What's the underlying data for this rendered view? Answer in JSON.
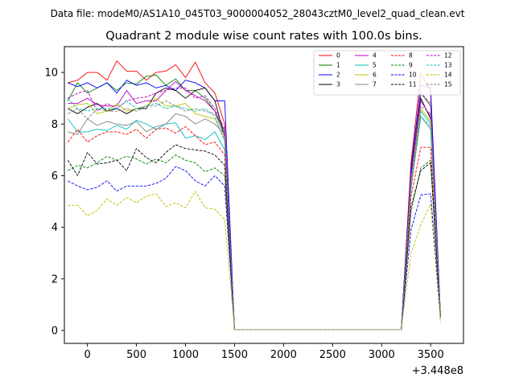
{
  "suptitle": "Data file: modeM0/AS1A10_045T03_9000004052_28043cztM0_level2_quad_clean.evt",
  "chart_data": {
    "type": "line",
    "title": "Quadrant 2 module wise count rates with 100.0s bins.",
    "xlabel": "",
    "ylabel": "",
    "x_offset_label": "+3.448e8",
    "xlim": [
      -235,
      3835
    ],
    "ylim": [
      -0.5,
      11.0
    ],
    "xticks": [
      0,
      500,
      1000,
      1500,
      2000,
      2500,
      3000,
      3500
    ],
    "yticks": [
      0,
      2,
      4,
      6,
      8,
      10
    ],
    "grid": false,
    "legend_position": "top-right",
    "x": [
      -200,
      -100,
      0,
      100,
      200,
      300,
      400,
      500,
      600,
      700,
      800,
      900,
      1000,
      1100,
      1200,
      1300,
      1400,
      1500,
      1600,
      1700,
      1800,
      1900,
      2000,
      2100,
      2200,
      2300,
      2400,
      2500,
      2600,
      2700,
      2800,
      2900,
      3000,
      3100,
      3200,
      3300,
      3400,
      3500,
      3600
    ],
    "series": [
      {
        "name": "0",
        "color": "#ff0000",
        "dash": "solid",
        "values": [
          9.6,
          9.7,
          10.0,
          10.0,
          9.7,
          10.45,
          10.05,
          10.05,
          9.7,
          10.0,
          10.05,
          10.3,
          9.8,
          10.4,
          9.6,
          9.2,
          8.0,
          0.03,
          0.03,
          0.03,
          0.03,
          0.03,
          0.03,
          0.03,
          0.03,
          0.03,
          0.03,
          0.03,
          0.03,
          0.03,
          0.03,
          0.03,
          0.03,
          0.03,
          0.03,
          6.5,
          10.0,
          9.2,
          0.6
        ]
      },
      {
        "name": "1",
        "color": "#008000",
        "dash": "solid",
        "values": [
          8.9,
          9.6,
          9.2,
          9.4,
          9.6,
          9.3,
          9.6,
          9.55,
          9.85,
          9.9,
          9.5,
          9.75,
          9.3,
          9.3,
          9.0,
          8.5,
          7.7,
          0.03,
          0.03,
          0.03,
          0.03,
          0.03,
          0.03,
          0.03,
          0.03,
          0.03,
          0.03,
          0.03,
          0.03,
          0.03,
          0.03,
          0.03,
          0.03,
          0.03,
          0.03,
          6.2,
          9.2,
          8.7,
          0.55
        ]
      },
      {
        "name": "2",
        "color": "#0000ff",
        "dash": "solid",
        "values": [
          9.6,
          9.45,
          9.6,
          9.4,
          9.6,
          9.2,
          9.7,
          9.5,
          9.6,
          9.4,
          9.5,
          9.3,
          9.7,
          9.6,
          9.4,
          8.9,
          8.9,
          0.03,
          0.03,
          0.03,
          0.03,
          0.03,
          0.03,
          0.03,
          0.03,
          0.03,
          0.03,
          0.03,
          0.03,
          0.03,
          0.03,
          0.03,
          0.03,
          0.03,
          0.03,
          6.3,
          9.5,
          9.4,
          0.6
        ]
      },
      {
        "name": "3",
        "color": "#000000",
        "dash": "solid",
        "values": [
          8.6,
          8.4,
          8.65,
          8.8,
          8.5,
          8.6,
          8.4,
          8.6,
          8.6,
          9.2,
          9.4,
          9.3,
          9.0,
          9.3,
          9.4,
          8.9,
          7.5,
          0.03,
          0.03,
          0.03,
          0.03,
          0.03,
          0.03,
          0.03,
          0.03,
          0.03,
          0.03,
          0.03,
          0.03,
          0.03,
          0.03,
          0.03,
          0.03,
          0.03,
          0.03,
          6.0,
          9.0,
          8.2,
          0.5
        ]
      },
      {
        "name": "4",
        "color": "#bf00bf",
        "dash": "solid",
        "values": [
          8.8,
          8.8,
          9.0,
          8.75,
          8.7,
          8.7,
          9.3,
          8.8,
          8.9,
          8.9,
          9.3,
          9.65,
          9.3,
          9.1,
          8.9,
          8.5,
          7.5,
          0.03,
          0.03,
          0.03,
          0.03,
          0.03,
          0.03,
          0.03,
          0.03,
          0.03,
          0.03,
          0.03,
          0.03,
          0.03,
          0.03,
          0.03,
          0.03,
          0.03,
          0.03,
          6.0,
          8.9,
          8.3,
          0.5
        ]
      },
      {
        "name": "5",
        "color": "#00bfbf",
        "dash": "solid",
        "values": [
          8.2,
          7.7,
          7.7,
          7.8,
          7.75,
          7.95,
          7.8,
          8.15,
          8.0,
          7.8,
          8.0,
          8.05,
          7.45,
          7.55,
          7.4,
          7.7,
          7.0,
          0.03,
          0.03,
          0.03,
          0.03,
          0.03,
          0.03,
          0.03,
          0.03,
          0.03,
          0.03,
          0.03,
          0.03,
          0.03,
          0.03,
          0.03,
          0.03,
          0.03,
          0.03,
          5.5,
          8.5,
          8.0,
          0.5
        ]
      },
      {
        "name": "6",
        "color": "#bfbf00",
        "dash": "solid",
        "values": [
          8.6,
          8.75,
          8.8,
          8.4,
          8.5,
          8.8,
          8.5,
          8.6,
          8.7,
          9.0,
          8.7,
          8.7,
          8.8,
          8.4,
          8.3,
          8.2,
          7.4,
          0.03,
          0.03,
          0.03,
          0.03,
          0.03,
          0.03,
          0.03,
          0.03,
          0.03,
          0.03,
          0.03,
          0.03,
          0.03,
          0.03,
          0.03,
          0.03,
          0.03,
          0.03,
          5.7,
          8.6,
          8.1,
          0.5
        ]
      },
      {
        "name": "7",
        "color": "#808080",
        "dash": "solid",
        "values": [
          7.7,
          7.6,
          8.2,
          7.95,
          8.1,
          8.0,
          7.95,
          8.1,
          7.7,
          7.9,
          8.0,
          8.4,
          8.3,
          8.0,
          8.2,
          8.0,
          7.6,
          0.03,
          0.03,
          0.03,
          0.03,
          0.03,
          0.03,
          0.03,
          0.03,
          0.03,
          0.03,
          0.03,
          0.03,
          0.03,
          0.03,
          0.03,
          0.03,
          0.03,
          0.03,
          5.5,
          8.3,
          7.8,
          0.5
        ]
      },
      {
        "name": "8",
        "color": "#ff0000",
        "dash": "dashed",
        "values": [
          7.3,
          7.8,
          7.3,
          7.55,
          7.7,
          7.7,
          7.6,
          7.8,
          7.45,
          7.8,
          7.85,
          7.65,
          7.9,
          7.55,
          7.2,
          7.3,
          6.8,
          0.03,
          0.03,
          0.03,
          0.03,
          0.03,
          0.03,
          0.03,
          0.03,
          0.03,
          0.03,
          0.03,
          0.03,
          0.03,
          0.03,
          0.03,
          0.03,
          0.03,
          0.03,
          5.2,
          7.1,
          7.1,
          0.5
        ]
      },
      {
        "name": "9",
        "color": "#008000",
        "dash": "dashed",
        "values": [
          6.2,
          6.4,
          6.3,
          6.5,
          6.75,
          6.6,
          6.75,
          6.65,
          6.45,
          6.65,
          6.5,
          6.8,
          6.6,
          6.5,
          6.15,
          6.3,
          6.0,
          0.03,
          0.03,
          0.03,
          0.03,
          0.03,
          0.03,
          0.03,
          0.03,
          0.03,
          0.03,
          0.03,
          0.03,
          0.03,
          0.03,
          0.03,
          0.03,
          0.03,
          0.03,
          4.6,
          6.3,
          6.6,
          0.5
        ]
      },
      {
        "name": "10",
        "color": "#0000ff",
        "dash": "dashed",
        "values": [
          5.8,
          5.6,
          5.45,
          5.55,
          5.8,
          5.4,
          5.6,
          5.6,
          5.6,
          5.7,
          5.9,
          6.35,
          6.2,
          5.8,
          5.6,
          6.0,
          5.6,
          0.03,
          0.03,
          0.03,
          0.03,
          0.03,
          0.03,
          0.03,
          0.03,
          0.03,
          0.03,
          0.03,
          0.03,
          0.03,
          0.03,
          0.03,
          0.03,
          0.03,
          0.03,
          3.9,
          5.25,
          5.3,
          0.5
        ]
      },
      {
        "name": "11",
        "color": "#000000",
        "dash": "dashed",
        "values": [
          6.6,
          6.0,
          6.9,
          6.45,
          6.5,
          6.6,
          6.2,
          7.05,
          6.7,
          6.5,
          6.9,
          7.2,
          7.05,
          7.0,
          6.95,
          6.8,
          6.4,
          0.03,
          0.03,
          0.03,
          0.03,
          0.03,
          0.03,
          0.03,
          0.03,
          0.03,
          0.03,
          0.03,
          0.03,
          0.03,
          0.03,
          0.03,
          0.03,
          0.03,
          0.03,
          4.8,
          6.2,
          6.5,
          0.5
        ]
      },
      {
        "name": "12",
        "color": "#bf00bf",
        "dash": "dashed",
        "values": [
          9.0,
          9.2,
          9.3,
          8.5,
          8.8,
          8.6,
          8.9,
          9.0,
          9.05,
          9.2,
          9.3,
          9.4,
          9.4,
          9.0,
          9.1,
          8.6,
          7.8,
          0.03,
          0.03,
          0.03,
          0.03,
          0.03,
          0.03,
          0.03,
          0.03,
          0.03,
          0.03,
          0.03,
          0.03,
          0.03,
          0.03,
          0.03,
          0.03,
          0.03,
          0.03,
          6.0,
          9.2,
          8.8,
          0.55
        ]
      },
      {
        "name": "13",
        "color": "#00bfbf",
        "dash": "dashed",
        "values": [
          9.0,
          8.6,
          8.5,
          8.6,
          8.6,
          8.6,
          8.9,
          8.6,
          8.7,
          8.8,
          8.6,
          8.7,
          8.6,
          8.5,
          8.6,
          8.3,
          7.3,
          0.03,
          0.03,
          0.03,
          0.03,
          0.03,
          0.03,
          0.03,
          0.03,
          0.03,
          0.03,
          0.03,
          0.03,
          0.03,
          0.03,
          0.03,
          0.03,
          0.03,
          0.03,
          5.6,
          8.3,
          7.9,
          0.5
        ]
      },
      {
        "name": "14",
        "color": "#bfbf00",
        "dash": "dashed",
        "values": [
          4.85,
          4.85,
          4.45,
          4.65,
          5.1,
          4.85,
          5.15,
          4.95,
          5.2,
          5.3,
          4.8,
          4.95,
          4.75,
          5.4,
          4.75,
          4.7,
          4.3,
          0.03,
          0.03,
          0.03,
          0.03,
          0.03,
          0.03,
          0.03,
          0.03,
          0.03,
          0.03,
          0.03,
          0.03,
          0.03,
          0.03,
          0.03,
          0.03,
          0.03,
          0.03,
          3.0,
          4.1,
          4.9,
          0.3
        ]
      },
      {
        "name": "15",
        "color": "#808080",
        "dash": "dashed",
        "values": [
          8.4,
          8.6,
          8.2,
          8.6,
          8.5,
          8.5,
          8.6,
          8.5,
          8.7,
          8.7,
          8.9,
          8.7,
          8.5,
          8.6,
          8.5,
          8.4,
          7.6,
          0.03,
          0.03,
          0.03,
          0.03,
          0.03,
          0.03,
          0.03,
          0.03,
          0.03,
          0.03,
          0.03,
          0.03,
          0.03,
          0.03,
          0.03,
          0.03,
          0.03,
          0.03,
          5.8,
          8.7,
          8.4,
          0.5
        ]
      }
    ]
  }
}
